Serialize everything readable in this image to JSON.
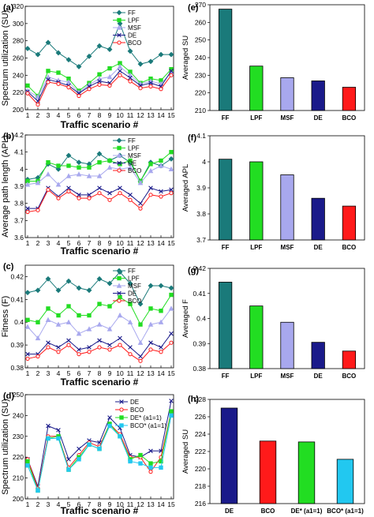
{
  "colors": {
    "FF": "#1a7a7a",
    "LPF": "#22dd22",
    "MSF": "#a8a8ee",
    "DE": "#1a1a8a",
    "BCO": "#ff1a1a",
    "DEstar": "#22dd22",
    "BCOstar": "#22c8f0"
  },
  "chart_data": [
    {
      "panel": "(a)",
      "type": "line",
      "xlabel": "Traffic scenario #",
      "ylabel": "Spectrum utilization (SU)",
      "x": [
        1,
        2,
        3,
        4,
        5,
        6,
        7,
        8,
        9,
        10,
        11,
        12,
        13,
        14,
        15
      ],
      "xticks": [
        "1",
        "2",
        "3",
        "4",
        "5",
        "6",
        "7",
        "8",
        "9",
        "10",
        "11",
        "12",
        "13",
        "14",
        "15"
      ],
      "ylim": [
        200,
        320
      ],
      "yticks": [
        "200",
        "220",
        "240",
        "260",
        "280",
        "300",
        "320"
      ],
      "legend_position": "top-right",
      "series": [
        {
          "name": "FF",
          "color_key": "FF",
          "marker": "diamond",
          "values": [
            271,
            264,
            278,
            266,
            258,
            250,
            262,
            274,
            270,
            300,
            268,
            253,
            256,
            264,
            264
          ]
        },
        {
          "name": "LPF",
          "color_key": "LPF",
          "marker": "square",
          "values": [
            228,
            216,
            245,
            243,
            236,
            222,
            231,
            241,
            248,
            254,
            244,
            231,
            236,
            234,
            247
          ]
        },
        {
          "name": "MSF",
          "color_key": "MSF",
          "marker": "triangle",
          "values": [
            222,
            215,
            238,
            234,
            232,
            220,
            229,
            236,
            238,
            250,
            240,
            230,
            233,
            230,
            243
          ]
        },
        {
          "name": "DE",
          "color_key": "DE",
          "marker": "x",
          "values": [
            221,
            210,
            235,
            232,
            228,
            219,
            227,
            233,
            231,
            245,
            237,
            228,
            231,
            227,
            245
          ]
        },
        {
          "name": "BCO",
          "color_key": "BCO",
          "marker": "circle",
          "values": [
            219,
            206,
            232,
            230,
            226,
            216,
            224,
            229,
            228,
            240,
            233,
            225,
            227,
            224,
            240
          ]
        }
      ]
    },
    {
      "panel": "(b)",
      "type": "line",
      "xlabel": "Traffic scenario #",
      "ylabel": "Average path length (APL)",
      "x": [
        1,
        2,
        3,
        4,
        5,
        6,
        7,
        8,
        9,
        10,
        11,
        12,
        13,
        14,
        15
      ],
      "xticks": [
        "1",
        "2",
        "3",
        "4",
        "5",
        "6",
        "7",
        "8",
        "9",
        "10",
        "11",
        "12",
        "13",
        "14",
        "15"
      ],
      "ylim": [
        3.6,
        4.2
      ],
      "yticks": [
        "3.6",
        "3.7",
        "3.8",
        "3.9",
        "4",
        "4.1",
        "4.2"
      ],
      "legend_position": "top-right",
      "series": [
        {
          "name": "FF",
          "color_key": "FF",
          "marker": "diamond",
          "values": [
            3.94,
            3.95,
            4.03,
            4.0,
            4.08,
            4.04,
            4.03,
            4.09,
            4.05,
            4.08,
            4.04,
            3.93,
            4.04,
            4.02,
            4.06
          ]
        },
        {
          "name": "LPF",
          "color_key": "LPF",
          "marker": "square",
          "values": [
            3.93,
            3.93,
            4.04,
            4.02,
            4.02,
            4.01,
            4.01,
            4.04,
            4.05,
            4.03,
            4.05,
            3.93,
            4.03,
            4.05,
            4.1
          ]
        },
        {
          "name": "MSF",
          "color_key": "MSF",
          "marker": "triangle",
          "values": [
            3.91,
            3.92,
            3.97,
            3.91,
            3.96,
            3.97,
            3.96,
            3.96,
            4.01,
            4.0,
            4.01,
            3.92,
            3.99,
            4.02,
            4.0
          ]
        },
        {
          "name": "DE",
          "color_key": "DE",
          "marker": "x",
          "values": [
            3.77,
            3.77,
            3.89,
            3.84,
            3.89,
            3.85,
            3.85,
            3.89,
            3.86,
            3.89,
            3.85,
            3.8,
            3.89,
            3.87,
            3.88
          ]
        },
        {
          "name": "BCO",
          "color_key": "BCO",
          "marker": "circle",
          "values": [
            3.75,
            3.76,
            3.88,
            3.83,
            3.87,
            3.83,
            3.83,
            3.86,
            3.82,
            3.86,
            3.82,
            3.77,
            3.85,
            3.84,
            3.86
          ]
        }
      ]
    },
    {
      "panel": "(c)",
      "type": "line",
      "xlabel": "Traffic scenario #",
      "ylabel": "Fitness (F)",
      "x": [
        1,
        2,
        3,
        4,
        5,
        6,
        7,
        8,
        9,
        10,
        11,
        12,
        13,
        14,
        15
      ],
      "xticks": [
        "1",
        "2",
        "3",
        "4",
        "5",
        "6",
        "7",
        "8",
        "9",
        "10",
        "11",
        "12",
        "13",
        "14",
        "15"
      ],
      "ylim": [
        0.38,
        0.425
      ],
      "yticks": [
        "0.38",
        "0.39",
        "0.4",
        "0.41",
        "0.42"
      ],
      "legend_position": "top-right",
      "series": [
        {
          "name": "FF",
          "color_key": "FF",
          "marker": "diamond",
          "values": [
            0.413,
            0.414,
            0.419,
            0.414,
            0.418,
            0.415,
            0.414,
            0.419,
            0.417,
            0.422,
            0.417,
            0.408,
            0.416,
            0.416,
            0.415
          ]
        },
        {
          "name": "LPF",
          "color_key": "LPF",
          "marker": "square",
          "values": [
            0.401,
            0.4,
            0.406,
            0.403,
            0.407,
            0.403,
            0.403,
            0.408,
            0.407,
            0.411,
            0.408,
            0.399,
            0.406,
            0.405,
            0.412
          ]
        },
        {
          "name": "MSF",
          "color_key": "MSF",
          "marker": "triangle",
          "values": [
            0.398,
            0.393,
            0.401,
            0.399,
            0.4,
            0.395,
            0.397,
            0.399,
            0.397,
            0.403,
            0.4,
            0.391,
            0.399,
            0.4,
            0.406
          ]
        },
        {
          "name": "DE",
          "color_key": "DE",
          "marker": "x",
          "values": [
            0.386,
            0.386,
            0.391,
            0.389,
            0.392,
            0.388,
            0.389,
            0.392,
            0.39,
            0.393,
            0.389,
            0.385,
            0.391,
            0.389,
            0.395
          ]
        },
        {
          "name": "BCO",
          "color_key": "BCO",
          "marker": "circle",
          "values": [
            0.384,
            0.385,
            0.389,
            0.387,
            0.39,
            0.386,
            0.387,
            0.389,
            0.388,
            0.39,
            0.386,
            0.383,
            0.388,
            0.387,
            0.391
          ]
        }
      ]
    },
    {
      "panel": "(d)",
      "type": "line",
      "xlabel": "Traffic scenario #",
      "ylabel": "Spectrum utilization (SU)",
      "x": [
        1,
        2,
        3,
        4,
        5,
        6,
        7,
        8,
        9,
        10,
        11,
        12,
        13,
        14,
        15
      ],
      "xticks": [
        "1",
        "2",
        "3",
        "4",
        "5",
        "6",
        "7",
        "8",
        "9",
        "10",
        "11",
        "12",
        "13",
        "14",
        "15"
      ],
      "ylim": [
        200,
        250
      ],
      "yticks": [
        "200",
        "210",
        "220",
        "230",
        "240",
        "250"
      ],
      "legend_position": "top-right",
      "series": [
        {
          "name": "DE",
          "color_key": "DE",
          "marker": "x",
          "values": [
            219,
            206,
            235,
            233,
            219,
            224,
            228,
            227,
            239,
            234,
            221,
            220,
            223,
            223,
            247
          ]
        },
        {
          "name": "BCO",
          "color_key": "BCO",
          "marker": "circle",
          "values": [
            219,
            205,
            230,
            230,
            215,
            221,
            227,
            225,
            236,
            231,
            220,
            220,
            213,
            220,
            242
          ]
        },
        {
          "name": "DE* (a1=1)",
          "color_key": "DEstar",
          "marker": "square",
          "values": [
            218,
            204,
            229,
            230,
            214,
            220,
            226,
            224,
            236,
            230,
            219,
            221,
            217,
            218,
            242
          ]
        },
        {
          "name": "BCO* (a1=1)",
          "color_key": "BCOstar",
          "marker": "square",
          "values": [
            216,
            204,
            229,
            229,
            214,
            219,
            226,
            224,
            235,
            230,
            218,
            217,
            215,
            215,
            240
          ]
        }
      ]
    },
    {
      "panel": "(e)",
      "type": "bar",
      "ylabel": "Averaged SU",
      "categories": [
        "FF",
        "LPF",
        "MSF",
        "DE",
        "BCO"
      ],
      "color_keys": [
        "FF",
        "LPF",
        "MSF",
        "DE",
        "BCO"
      ],
      "values": [
        267.5,
        235.2,
        228.6,
        226.8,
        223.2
      ],
      "ylim": [
        210,
        270
      ],
      "yticks": [
        "210",
        "220",
        "230",
        "240",
        "250",
        "260",
        "270"
      ]
    },
    {
      "panel": "(f)",
      "type": "bar",
      "ylabel": "Averaged APL",
      "categories": [
        "FF",
        "LPF",
        "MSF",
        "DE",
        "BCO"
      ],
      "color_keys": [
        "FF",
        "LPF",
        "MSF",
        "DE",
        "BCO"
      ],
      "values": [
        4.01,
        4.0,
        3.95,
        3.86,
        3.83
      ],
      "ylim": [
        3.7,
        4.1
      ],
      "yticks": [
        "3.7",
        "3.8",
        "3.9",
        "4",
        "4.1"
      ]
    },
    {
      "panel": "(g)",
      "type": "bar",
      "ylabel": "Averaged F",
      "categories": [
        "FF",
        "LPF",
        "MSF",
        "DE",
        "BCO"
      ],
      "color_keys": [
        "FF",
        "LPF",
        "MSF",
        "DE",
        "BCO"
      ],
      "values": [
        0.4145,
        0.405,
        0.3985,
        0.3905,
        0.387
      ],
      "ylim": [
        0.38,
        0.42
      ],
      "yticks": [
        "0.38",
        "0.39",
        "0.4",
        "0.41",
        "0.42"
      ]
    },
    {
      "panel": "(h)",
      "type": "bar",
      "ylabel": "Averaged SU",
      "categories": [
        "DE",
        "BCO",
        "DE* (a1=1)",
        "BCO* (a1=1)"
      ],
      "color_keys": [
        "DE",
        "BCO",
        "DEstar",
        "BCOstar"
      ],
      "values": [
        227.0,
        223.2,
        223.1,
        221.1
      ],
      "ylim": [
        216,
        228
      ],
      "yticks": [
        "216",
        "218",
        "220",
        "222",
        "224",
        "226",
        "228"
      ]
    }
  ]
}
